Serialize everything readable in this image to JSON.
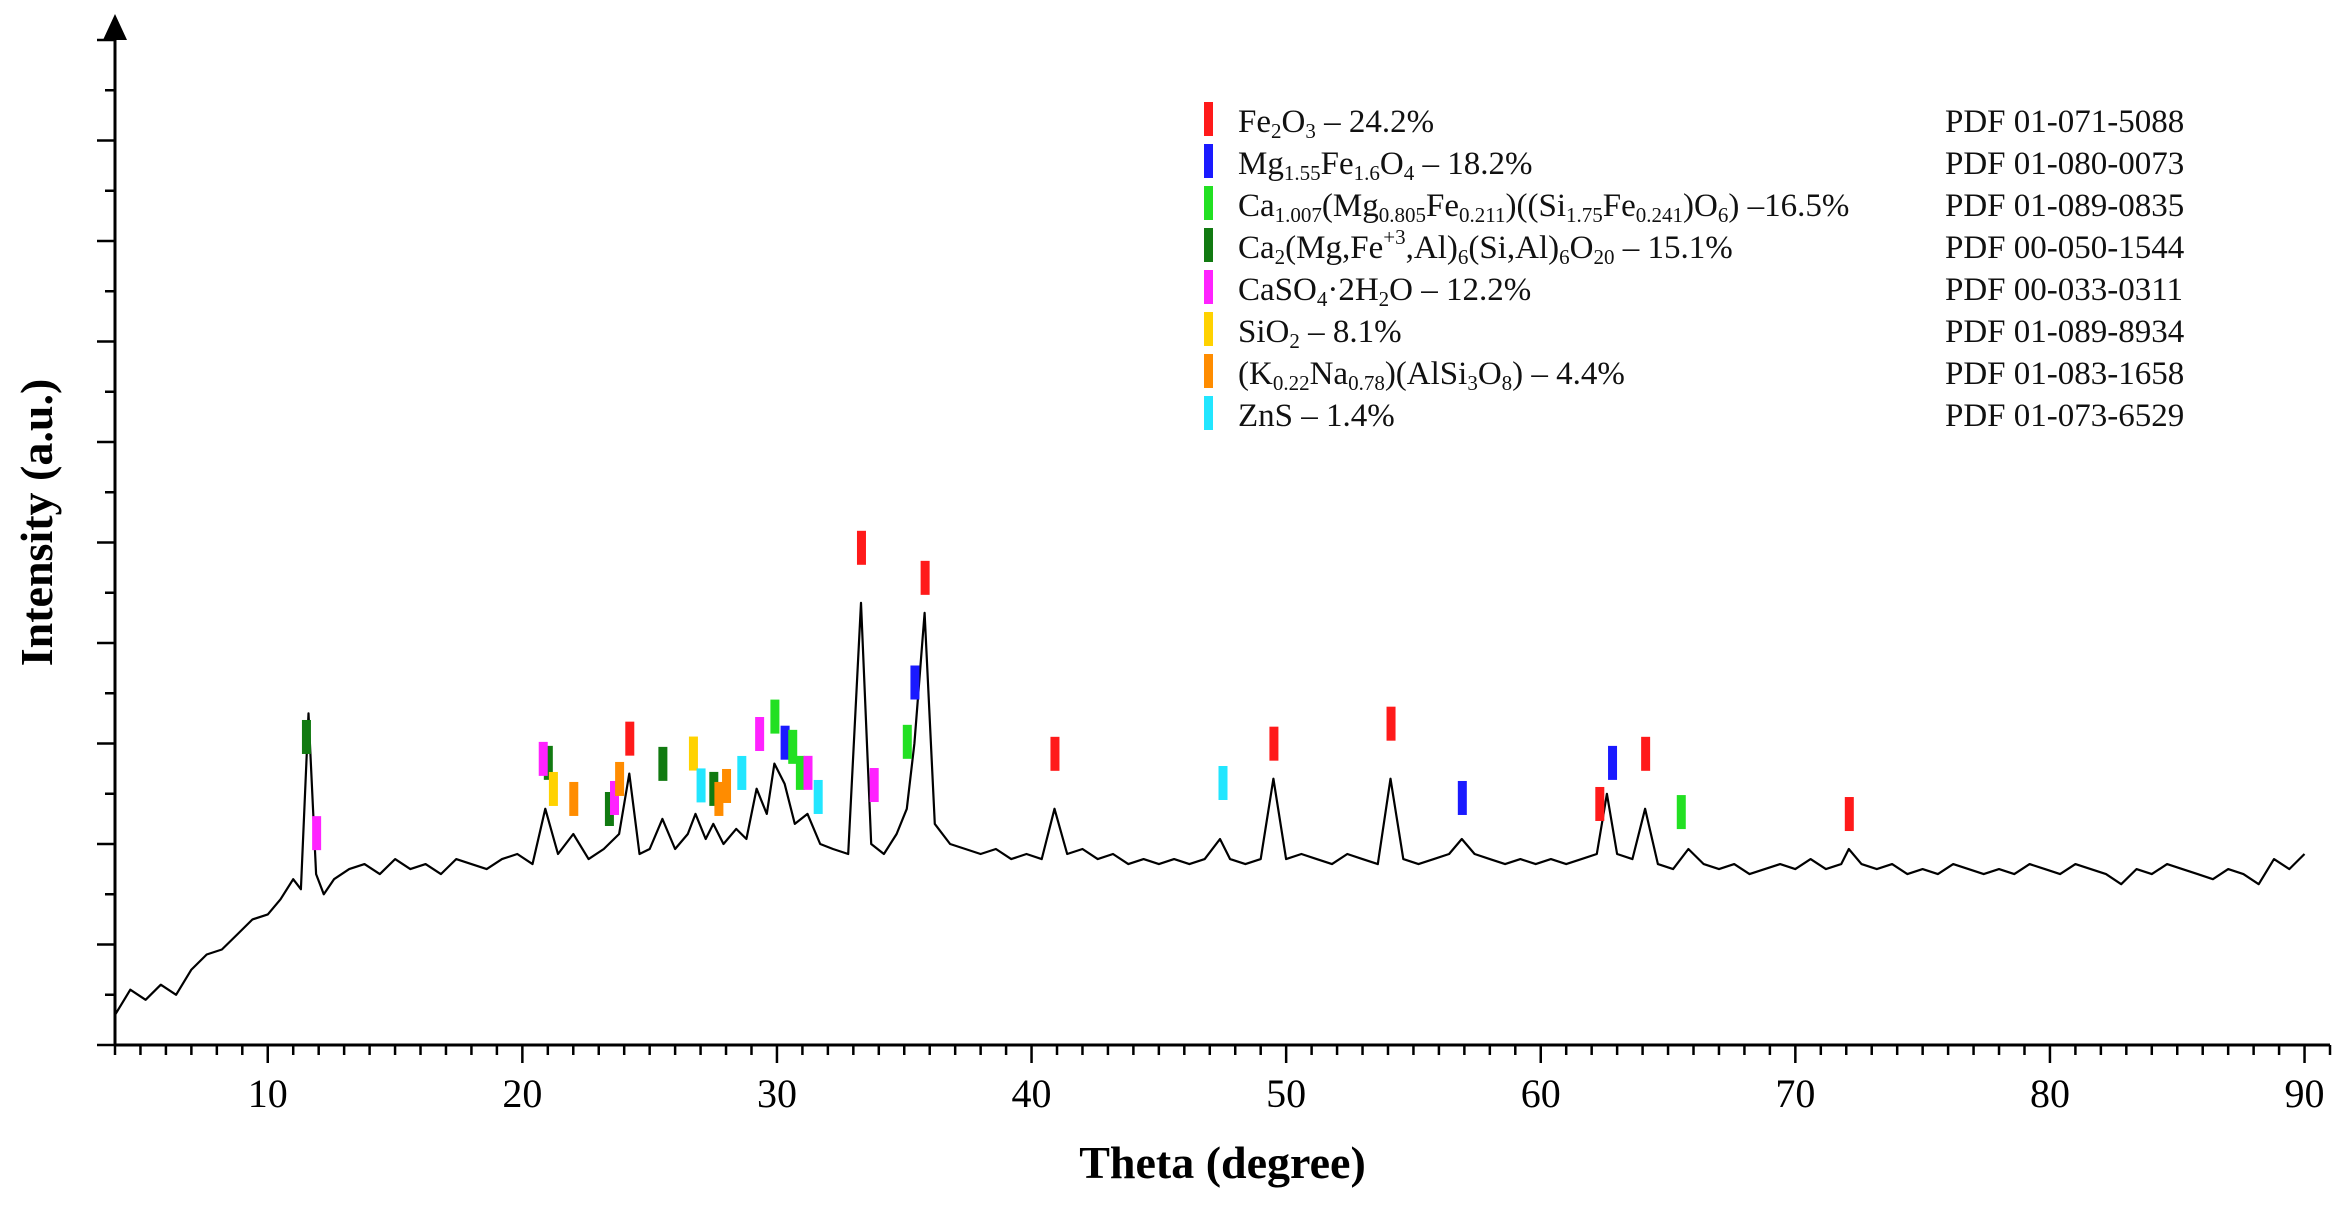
{
  "chart_data": {
    "type": "line",
    "title": "",
    "xlabel": "Theta (degree)",
    "ylabel": "Intensity (a.u.)",
    "xlim": [
      4,
      91
    ],
    "ylim": [
      0,
      10
    ],
    "x_ticks": [
      10,
      20,
      30,
      40,
      50,
      60,
      70,
      80,
      90
    ],
    "grid": false,
    "legend_position": "top-right",
    "pattern": {
      "points": [
        [
          4.0,
          0.3
        ],
        [
          4.6,
          0.55
        ],
        [
          5.2,
          0.45
        ],
        [
          5.8,
          0.6
        ],
        [
          6.4,
          0.5
        ],
        [
          7.0,
          0.75
        ],
        [
          7.6,
          0.9
        ],
        [
          8.2,
          0.95
        ],
        [
          8.8,
          1.1
        ],
        [
          9.4,
          1.25
        ],
        [
          10.0,
          1.3
        ],
        [
          10.5,
          1.45
        ],
        [
          11.0,
          1.65
        ],
        [
          11.3,
          1.55
        ],
        [
          11.6,
          3.3
        ],
        [
          11.9,
          1.7
        ],
        [
          12.2,
          1.5
        ],
        [
          12.6,
          1.65
        ],
        [
          13.2,
          1.75
        ],
        [
          13.8,
          1.8
        ],
        [
          14.4,
          1.7
        ],
        [
          15.0,
          1.85
        ],
        [
          15.6,
          1.75
        ],
        [
          16.2,
          1.8
        ],
        [
          16.8,
          1.7
        ],
        [
          17.4,
          1.85
        ],
        [
          18.0,
          1.8
        ],
        [
          18.6,
          1.75
        ],
        [
          19.2,
          1.85
        ],
        [
          19.8,
          1.9
        ],
        [
          20.4,
          1.8
        ],
        [
          20.9,
          2.35
        ],
        [
          21.4,
          1.9
        ],
        [
          22.0,
          2.1
        ],
        [
          22.6,
          1.85
        ],
        [
          23.2,
          1.95
        ],
        [
          23.8,
          2.1
        ],
        [
          24.2,
          2.7
        ],
        [
          24.6,
          1.9
        ],
        [
          25.0,
          1.95
        ],
        [
          25.5,
          2.25
        ],
        [
          26.0,
          1.95
        ],
        [
          26.5,
          2.1
        ],
        [
          26.8,
          2.3
        ],
        [
          27.2,
          2.05
        ],
        [
          27.5,
          2.2
        ],
        [
          27.9,
          2.0
        ],
        [
          28.4,
          2.15
        ],
        [
          28.8,
          2.05
        ],
        [
          29.2,
          2.55
        ],
        [
          29.6,
          2.3
        ],
        [
          29.9,
          2.8
        ],
        [
          30.3,
          2.6
        ],
        [
          30.7,
          2.2
        ],
        [
          31.2,
          2.3
        ],
        [
          31.7,
          2.0
        ],
        [
          32.2,
          1.95
        ],
        [
          32.8,
          1.9
        ],
        [
          33.3,
          4.4
        ],
        [
          33.7,
          2.0
        ],
        [
          34.2,
          1.9
        ],
        [
          34.7,
          2.1
        ],
        [
          35.1,
          2.35
        ],
        [
          35.4,
          3.0
        ],
        [
          35.8,
          4.3
        ],
        [
          36.2,
          2.2
        ],
        [
          36.8,
          2.0
        ],
        [
          37.4,
          1.95
        ],
        [
          38.0,
          1.9
        ],
        [
          38.6,
          1.95
        ],
        [
          39.2,
          1.85
        ],
        [
          39.8,
          1.9
        ],
        [
          40.4,
          1.85
        ],
        [
          40.9,
          2.35
        ],
        [
          41.4,
          1.9
        ],
        [
          42.0,
          1.95
        ],
        [
          42.6,
          1.85
        ],
        [
          43.2,
          1.9
        ],
        [
          43.8,
          1.8
        ],
        [
          44.4,
          1.85
        ],
        [
          45.0,
          1.8
        ],
        [
          45.6,
          1.85
        ],
        [
          46.2,
          1.8
        ],
        [
          46.8,
          1.85
        ],
        [
          47.4,
          2.05
        ],
        [
          47.8,
          1.85
        ],
        [
          48.4,
          1.8
        ],
        [
          49.0,
          1.85
        ],
        [
          49.5,
          2.65
        ],
        [
          50.0,
          1.85
        ],
        [
          50.6,
          1.9
        ],
        [
          51.2,
          1.85
        ],
        [
          51.8,
          1.8
        ],
        [
          52.4,
          1.9
        ],
        [
          53.0,
          1.85
        ],
        [
          53.6,
          1.8
        ],
        [
          54.1,
          2.65
        ],
        [
          54.6,
          1.85
        ],
        [
          55.2,
          1.8
        ],
        [
          55.8,
          1.85
        ],
        [
          56.4,
          1.9
        ],
        [
          56.9,
          2.05
        ],
        [
          57.4,
          1.9
        ],
        [
          58.0,
          1.85
        ],
        [
          58.6,
          1.8
        ],
        [
          59.2,
          1.85
        ],
        [
          59.8,
          1.8
        ],
        [
          60.4,
          1.85
        ],
        [
          61.0,
          1.8
        ],
        [
          61.6,
          1.85
        ],
        [
          62.2,
          1.9
        ],
        [
          62.6,
          2.5
        ],
        [
          63.0,
          1.9
        ],
        [
          63.6,
          1.85
        ],
        [
          64.1,
          2.35
        ],
        [
          64.6,
          1.8
        ],
        [
          65.2,
          1.75
        ],
        [
          65.8,
          1.95
        ],
        [
          66.4,
          1.8
        ],
        [
          67.0,
          1.75
        ],
        [
          67.6,
          1.8
        ],
        [
          68.2,
          1.7
        ],
        [
          68.8,
          1.75
        ],
        [
          69.4,
          1.8
        ],
        [
          70.0,
          1.75
        ],
        [
          70.6,
          1.85
        ],
        [
          71.2,
          1.75
        ],
        [
          71.8,
          1.8
        ],
        [
          72.1,
          1.95
        ],
        [
          72.6,
          1.8
        ],
        [
          73.2,
          1.75
        ],
        [
          73.8,
          1.8
        ],
        [
          74.4,
          1.7
        ],
        [
          75.0,
          1.75
        ],
        [
          75.6,
          1.7
        ],
        [
          76.2,
          1.8
        ],
        [
          76.8,
          1.75
        ],
        [
          77.4,
          1.7
        ],
        [
          78.0,
          1.75
        ],
        [
          78.6,
          1.7
        ],
        [
          79.2,
          1.8
        ],
        [
          79.8,
          1.75
        ],
        [
          80.4,
          1.7
        ],
        [
          81.0,
          1.8
        ],
        [
          81.6,
          1.75
        ],
        [
          82.2,
          1.7
        ],
        [
          82.8,
          1.6
        ],
        [
          83.4,
          1.75
        ],
        [
          84.0,
          1.7
        ],
        [
          84.6,
          1.8
        ],
        [
          85.2,
          1.75
        ],
        [
          85.8,
          1.7
        ],
        [
          86.4,
          1.65
        ],
        [
          87.0,
          1.75
        ],
        [
          87.6,
          1.7
        ],
        [
          88.2,
          1.6
        ],
        [
          88.8,
          1.85
        ],
        [
          89.4,
          1.75
        ],
        [
          90.0,
          1.9
        ]
      ]
    },
    "phase_markers": [
      {
        "phase": "Fe2O3",
        "x": [
          24.2,
          33.3,
          35.8,
          40.9,
          49.5,
          54.1,
          62.3,
          64.1,
          72.1
        ]
      },
      {
        "phase": "Mg1.55Fe1.6O4",
        "x": [
          30.3,
          35.4,
          56.9,
          62.8
        ]
      },
      {
        "phase": "Ca1.007(Mg0.805Fe0.211)((Si1.75Fe0.241)O6)",
        "x": [
          29.9,
          30.6,
          30.9,
          35.1,
          65.5
        ]
      },
      {
        "phase": "Ca2(Mg,Fe+3,Al)6(Si,Al)6O20",
        "x": [
          11.5,
          21.0,
          23.4,
          25.5,
          27.5
        ]
      },
      {
        "phase": "CaSO4·2H2O",
        "x": [
          11.9,
          20.8,
          23.6,
          29.3,
          31.2,
          33.8
        ]
      },
      {
        "phase": "SiO2",
        "x": [
          21.2,
          26.7
        ]
      },
      {
        "phase": "(K0.22Na0.78)(AlSi3O8)",
        "x": [
          22.0,
          23.8,
          27.7,
          28.0
        ]
      },
      {
        "phase": "ZnS",
        "x": [
          27.0,
          28.6,
          31.6,
          47.5
        ]
      }
    ]
  },
  "legend": {
    "entries": [
      {
        "color": "#ff1a1a",
        "formula": [
          [
            "Fe",
            ""
          ],
          [
            "2",
            "sub"
          ],
          [
            "O",
            ""
          ],
          [
            "3",
            "sub"
          ],
          [
            " – 24.2%",
            ""
          ]
        ],
        "pdf": "PDF 01-071-5088"
      },
      {
        "color": "#1a1aff",
        "formula": [
          [
            "Mg",
            ""
          ],
          [
            "1.55",
            "sub"
          ],
          [
            "Fe",
            ""
          ],
          [
            "1.6",
            "sub"
          ],
          [
            "O",
            ""
          ],
          [
            "4",
            "sub"
          ],
          [
            " – 18.2%",
            ""
          ]
        ],
        "pdf": "PDF 01-080-0073"
      },
      {
        "color": "#22e022",
        "formula": [
          [
            "Ca",
            ""
          ],
          [
            "1.007",
            "sub"
          ],
          [
            "(Mg",
            ""
          ],
          [
            "0.805",
            "sub"
          ],
          [
            "Fe",
            ""
          ],
          [
            "0.211",
            "sub"
          ],
          [
            ")((Si",
            ""
          ],
          [
            "1.75",
            "sub"
          ],
          [
            "Fe",
            ""
          ],
          [
            "0.241",
            "sub"
          ],
          [
            ")O",
            ""
          ],
          [
            "6",
            "sub"
          ],
          [
            ") –16.5%",
            ""
          ]
        ],
        "pdf": "PDF 01-089-0835"
      },
      {
        "color": "#117a11",
        "formula": [
          [
            "Ca",
            ""
          ],
          [
            "2",
            "sub"
          ],
          [
            "(Mg,Fe",
            ""
          ],
          [
            "+3",
            "sup"
          ],
          [
            ",Al)",
            ""
          ],
          [
            "6",
            "sub"
          ],
          [
            "(Si,Al)",
            ""
          ],
          [
            "6",
            "sub"
          ],
          [
            "O",
            ""
          ],
          [
            "20",
            "sub"
          ],
          [
            " – 15.1%",
            ""
          ]
        ],
        "pdf": "PDF 00-050-1544"
      },
      {
        "color": "#ff22ff",
        "formula": [
          [
            "CaSO",
            ""
          ],
          [
            "4",
            "sub"
          ],
          [
            "·2H",
            ""
          ],
          [
            "2",
            "sub"
          ],
          [
            "O – 12.2%",
            ""
          ]
        ],
        "pdf": "PDF 00-033-0311"
      },
      {
        "color": "#ffd200",
        "formula": [
          [
            "SiO",
            ""
          ],
          [
            "2",
            "sub"
          ],
          [
            " – 8.1%",
            ""
          ]
        ],
        "pdf": "PDF 01-089-8934"
      },
      {
        "color": "#ff8c00",
        "formula": [
          [
            "(K",
            ""
          ],
          [
            "0.22",
            "sub"
          ],
          [
            "Na",
            ""
          ],
          [
            "0.78",
            "sub"
          ],
          [
            ")(AlSi",
            ""
          ],
          [
            "3",
            "sub"
          ],
          [
            "O",
            ""
          ],
          [
            "8",
            "sub"
          ],
          [
            ") – 4.4%",
            ""
          ]
        ],
        "pdf": "PDF 01-083-1658"
      },
      {
        "color": "#22e6ff",
        "formula": [
          [
            "ZnS – 1.4%",
            ""
          ]
        ],
        "pdf": "PDF 01-073-6529"
      }
    ]
  }
}
